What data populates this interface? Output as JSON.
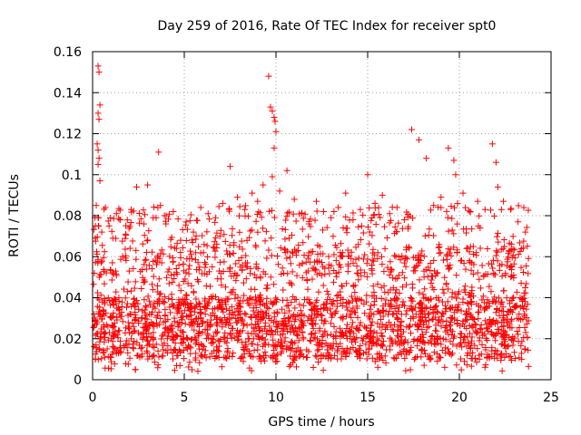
{
  "chart_data": {
    "type": "scatter",
    "title": "Day 259 of 2016, Rate Of TEC Index for receiver spt0",
    "xlabel": "GPS time / hours",
    "ylabel": "ROTI / TECUs",
    "xlim": [
      0,
      25
    ],
    "ylim": [
      0,
      0.16
    ],
    "xticks": [
      0,
      5,
      10,
      15,
      20,
      25
    ],
    "xtick_labels": [
      "0",
      "5",
      "10",
      "15",
      "20",
      "25"
    ],
    "yticks": [
      0,
      0.02,
      0.04,
      0.06,
      0.08,
      0.1,
      0.12,
      0.14,
      0.16
    ],
    "ytick_labels": [
      "0",
      "0.02",
      "0.04",
      "0.06",
      "0.08",
      "0.1",
      "0.12",
      "0.14",
      "0.16"
    ],
    "grid": true,
    "marker": "plus",
    "color": "#ff0000",
    "series": [
      {
        "name": "ROTI",
        "x": [
          0.3,
          0.35,
          0.4,
          0.3,
          0.35,
          0.25,
          0.3,
          0.35,
          0.3,
          0.4,
          0.2,
          0.3,
          0.15,
          0.5,
          0.7,
          0.9,
          1.1,
          1.3,
          1.5,
          1.8,
          2.1,
          2.4,
          2.8,
          3.0,
          3.3,
          3.6,
          3.7,
          4.0,
          4.4,
          4.8,
          5.1,
          5.5,
          5.9,
          6.3,
          6.7,
          7.1,
          7.5,
          7.9,
          8.3,
          8.7,
          9.0,
          9.3,
          9.6,
          9.7,
          9.8,
          9.9,
          9.95,
          10.0,
          9.9,
          9.8,
          10.2,
          10.6,
          11.0,
          11.4,
          11.8,
          12.2,
          12.6,
          13.0,
          13.4,
          13.8,
          14.2,
          14.6,
          15.0,
          15.4,
          15.8,
          16.2,
          16.6,
          17.0,
          17.4,
          17.8,
          18.2,
          18.6,
          19.0,
          19.4,
          19.7,
          19.8,
          19.9,
          20.2,
          20.6,
          21.0,
          21.4,
          21.8,
          22.0,
          22.1,
          22.4,
          22.8,
          23.2,
          23.6
        ],
        "y": [
          0.153,
          0.15,
          0.134,
          0.13,
          0.127,
          0.115,
          0.112,
          0.108,
          0.105,
          0.097,
          0.085,
          0.079,
          0.075,
          0.072,
          0.084,
          0.075,
          0.069,
          0.081,
          0.078,
          0.071,
          0.083,
          0.094,
          0.076,
          0.095,
          0.079,
          0.111,
          0.085,
          0.076,
          0.082,
          0.068,
          0.077,
          0.072,
          0.084,
          0.081,
          0.079,
          0.086,
          0.104,
          0.089,
          0.083,
          0.091,
          0.087,
          0.095,
          0.148,
          0.133,
          0.131,
          0.128,
          0.126,
          0.121,
          0.113,
          0.099,
          0.092,
          0.102,
          0.088,
          0.081,
          0.076,
          0.087,
          0.082,
          0.079,
          0.084,
          0.091,
          0.078,
          0.083,
          0.1,
          0.086,
          0.09,
          0.081,
          0.084,
          0.078,
          0.122,
          0.117,
          0.108,
          0.085,
          0.089,
          0.113,
          0.107,
          0.1,
          0.086,
          0.091,
          0.082,
          0.087,
          0.083,
          0.115,
          0.106,
          0.094,
          0.087,
          0.083,
          0.077,
          0.072
        ]
      }
    ]
  }
}
